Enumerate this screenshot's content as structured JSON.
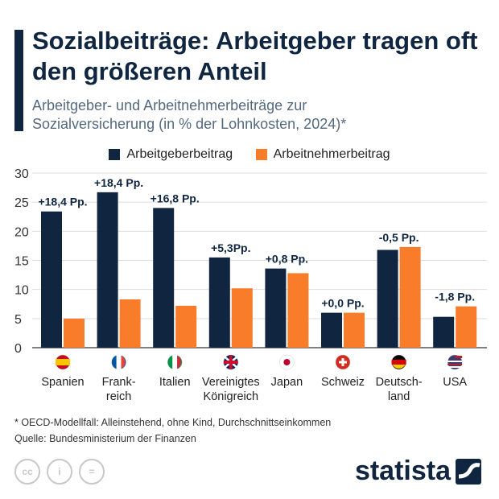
{
  "title": "Sozialbeiträge: Arbeitgeber tragen oft den größeren Anteil",
  "subtitle_line1": "Arbeitgeber- und Arbeitnehmerbeiträge zur",
  "subtitle_line2": "Sozialversicherung (in % der Lohnkosten, 2024)*",
  "footnote": "* OECD-Modellfall: Alleinstehend, ohne Kind, Durchschnittseinkommen",
  "source": "Quelle: Bundesministerium der Finanzen",
  "brand": "statista",
  "colors": {
    "employer": "#0f2540",
    "employee": "#f97c2a"
  },
  "chart_data": {
    "type": "bar",
    "categories": [
      "Spanien",
      "Frank-\nreich",
      "Italien",
      "Vereinigtes\nKönigreich",
      "Japan",
      "Schweiz",
      "Deutsch-\nland",
      "USA"
    ],
    "flags": [
      "spain-flag",
      "france-flag",
      "italy-flag",
      "uk-flag",
      "japan-flag",
      "switzerland-flag",
      "germany-flag",
      "usa-flag"
    ],
    "series": [
      {
        "name": "Arbeitgeberbeitrag",
        "values": [
          23.4,
          26.7,
          24.0,
          15.5,
          13.6,
          6.0,
          16.8,
          5.3
        ]
      },
      {
        "name": "Arbeitnehmerbeitrag",
        "values": [
          5.0,
          8.3,
          7.2,
          10.2,
          12.8,
          6.0,
          17.3,
          7.1
        ]
      }
    ],
    "annotations": [
      "+18,4 Pp.",
      "+18,4 Pp.",
      "+16,8 Pp.",
      "+5,3Pp.",
      "+0,8 Pp.",
      "+0,0 Pp.",
      "-0,5 Pp.",
      "-1,8 Pp."
    ],
    "yticks": [
      0,
      5,
      10,
      15,
      20,
      25,
      30
    ],
    "ylim": [
      0,
      30
    ],
    "grid": true,
    "legend": "top"
  }
}
